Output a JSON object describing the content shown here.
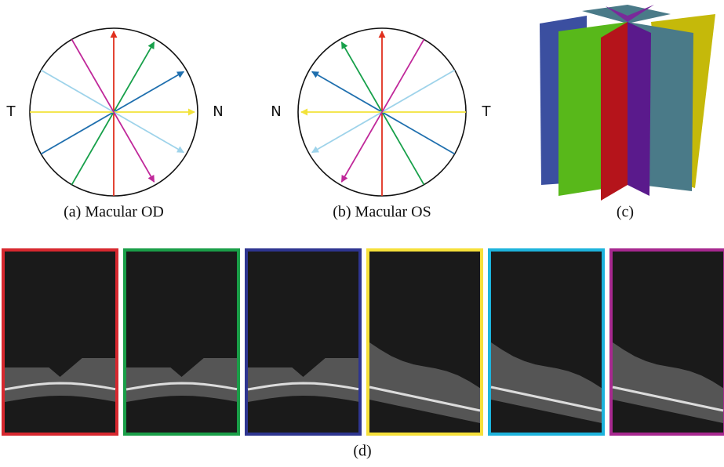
{
  "panel_a": {
    "left_label": "T",
    "right_label": "N",
    "caption": "(a) Macular OD"
  },
  "panel_b": {
    "left_label": "N",
    "right_label": "T",
    "caption": "(b) Macular OS"
  },
  "panel_c": {
    "caption": "(c)"
  },
  "panel_d": {
    "caption": "(d)"
  }
}
